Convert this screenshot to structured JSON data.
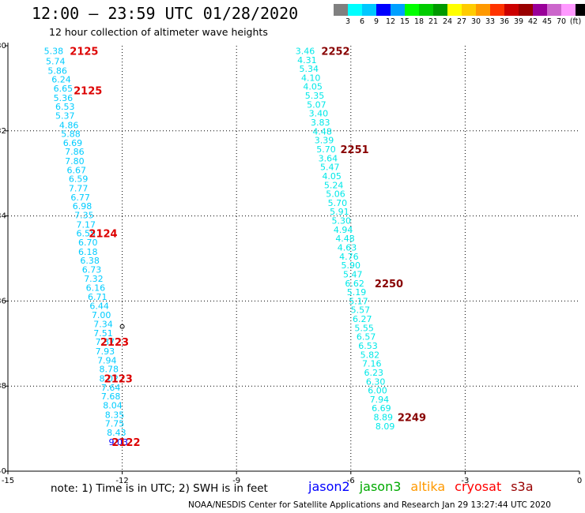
{
  "header": {
    "title": "12:00 – 23:59 UTC 01/28/2020",
    "subtitle": "12 hour collection of altimeter wave heights"
  },
  "colorbar": {
    "colors": [
      "#808080",
      "#00ffff",
      "#00c8ff",
      "#0000ff",
      "#00a0ff",
      "#00ff00",
      "#00cc00",
      "#009900",
      "#ffff00",
      "#ffcc00",
      "#ff9900",
      "#ff3300",
      "#cc0000",
      "#990000",
      "#990099",
      "#cc66cc",
      "#ff99ff",
      "#000000"
    ],
    "labels": [
      "3",
      "6",
      "9",
      "12",
      "15",
      "18",
      "21",
      "24",
      "27",
      "30",
      "33",
      "36",
      "39",
      "42",
      "45",
      "70",
      "(ft)"
    ]
  },
  "note": "note:  1) Time is in UTC;  2) SWH is in feet",
  "legend": [
    {
      "name": "jason2",
      "color": "#0000ff"
    },
    {
      "name": "jason3",
      "color": "#00aa00"
    },
    {
      "name": "altika",
      "color": "#ff9900"
    },
    {
      "name": "cryosat",
      "color": "#ff0000"
    },
    {
      "name": "s3a",
      "color": "#990000"
    }
  ],
  "footer": "NOAA/NESDIS Center for Satellite Applications and Research    Jan 29 13:27:44 UTC 2020",
  "chart_data": {
    "type": "scatter",
    "xlim": [
      -15,
      0
    ],
    "ylim": [
      -40,
      -30
    ],
    "x_ticks": [
      "-15",
      "-12",
      "-9",
      "-6",
      "-3",
      "0"
    ],
    "y_ticks": [
      "-30",
      "-32",
      "-34",
      "-36",
      "-38",
      "-40"
    ],
    "track1": {
      "color_value": "#00ccff",
      "values": [
        "5.38",
        "5.74",
        "5.86",
        "6.24",
        "6.65",
        "5.36",
        "6.53",
        "5.37",
        "4.86",
        "5.88",
        "6.69",
        "7.86",
        "7.80",
        "6.67",
        "6.59",
        "7.77",
        "6.77",
        "6.98",
        "7.35",
        "7.17",
        "6.55",
        "6.70",
        "6.18",
        "6.38",
        "6.73",
        "7.32",
        "6.16",
        "6.71",
        "6.44",
        "7.00",
        "7.34",
        "7.51",
        "7.37",
        "7.93",
        "7.94",
        "8.78",
        "8.02",
        "7.64",
        "7.68",
        "8.04",
        "8.35",
        "7.75",
        "8.43",
        "9.03"
      ],
      "x": [
        -13.8,
        -13.75,
        -13.7,
        -13.6,
        -13.55,
        -13.55,
        -13.5,
        -13.5,
        -13.4,
        -13.35,
        -13.3,
        -13.25,
        -13.25,
        -13.2,
        -13.15,
        -13.15,
        -13.1,
        -13.05,
        -13.0,
        -12.95,
        -12.95,
        -12.9,
        -12.9,
        -12.85,
        -12.8,
        -12.75,
        -12.7,
        -12.65,
        -12.6,
        -12.55,
        -12.5,
        -12.5,
        -12.45,
        -12.45,
        -12.4,
        -12.35,
        -12.35,
        -12.3,
        -12.3,
        -12.25,
        -12.2,
        -12.2,
        -12.15,
        -12.1
      ],
      "y": [
        -30.12,
        -30.36,
        -30.58,
        -30.79,
        -31.0,
        -31.22,
        -31.43,
        -31.64,
        -31.86,
        -32.07,
        -32.28,
        -32.49,
        -32.71,
        -32.92,
        -33.13,
        -33.35,
        -33.56,
        -33.77,
        -33.98,
        -34.2,
        -34.41,
        -34.62,
        -34.84,
        -35.05,
        -35.26,
        -35.47,
        -35.69,
        -35.9,
        -36.11,
        -36.33,
        -36.54,
        -36.75,
        -36.96,
        -37.18,
        -37.39,
        -37.6,
        -37.82,
        -38.03,
        -38.24,
        -38.45,
        -38.67,
        -38.88,
        -39.09,
        -39.31
      ],
      "last_point_color": "#0000ff"
    },
    "track2": {
      "color_value": "#00e8e8",
      "values": [
        "3.46",
        "4.31",
        "5.34",
        "4.10",
        "4.05",
        "5.35",
        "5.07",
        "3.40",
        "3.83",
        "4.48",
        "3.39",
        "5.70",
        "3.64",
        "5.47",
        "4.05",
        "5.24",
        "5.06",
        "5.70",
        "5.91",
        "5.30",
        "4.94",
        "4.48",
        "4.63",
        "4.76",
        "5.90",
        "5.47",
        "6.62",
        "5.19",
        "5.17",
        "5.57",
        "6.27",
        "5.55",
        "6.57",
        "6.53",
        "5.82",
        "7.16",
        "6.23",
        "6.30",
        "6.00",
        "7.94",
        "6.69",
        "8.89",
        "8.09"
      ],
      "x": [
        -7.2,
        -7.15,
        -7.1,
        -7.05,
        -7.0,
        -6.95,
        -6.9,
        -6.85,
        -6.8,
        -6.75,
        -6.7,
        -6.65,
        -6.6,
        -6.55,
        -6.5,
        -6.45,
        -6.4,
        -6.35,
        -6.3,
        -6.25,
        -6.2,
        -6.15,
        -6.1,
        -6.05,
        -6.0,
        -5.95,
        -5.9,
        -5.85,
        -5.8,
        -5.75,
        -5.7,
        -5.65,
        -5.6,
        -5.55,
        -5.5,
        -5.45,
        -5.4,
        -5.35,
        -5.3,
        -5.25,
        -5.2,
        -5.15,
        -5.1
      ],
      "y": [
        -30.12,
        -30.33,
        -30.54,
        -30.75,
        -30.96,
        -31.17,
        -31.38,
        -31.59,
        -31.8,
        -32.01,
        -32.22,
        -32.43,
        -32.64,
        -32.85,
        -33.06,
        -33.27,
        -33.48,
        -33.69,
        -33.9,
        -34.11,
        -34.32,
        -34.53,
        -34.74,
        -34.95,
        -35.16,
        -35.37,
        -35.58,
        -35.79,
        -36.0,
        -36.21,
        -36.42,
        -36.63,
        -36.84,
        -37.05,
        -37.26,
        -37.47,
        -37.68,
        -37.89,
        -38.1,
        -38.31,
        -38.52,
        -38.73,
        -38.94
      ]
    },
    "time_labels": [
      {
        "text": "2125",
        "x": -13.0,
        "y": -30.12,
        "color": "#dd0000"
      },
      {
        "text": "2125",
        "x": -12.9,
        "y": -31.05,
        "color": "#dd0000"
      },
      {
        "text": "2124",
        "x": -12.5,
        "y": -34.41,
        "color": "#dd0000"
      },
      {
        "text": "2123",
        "x": -12.2,
        "y": -36.96,
        "color": "#dd0000"
      },
      {
        "text": "2123",
        "x": -12.1,
        "y": -37.82,
        "color": "#dd0000"
      },
      {
        "text": "2122",
        "x": -11.9,
        "y": -39.31,
        "color": "#dd0000"
      },
      {
        "text": "2252",
        "x": -6.4,
        "y": -30.12,
        "color": "#880000"
      },
      {
        "text": "2251",
        "x": -5.9,
        "y": -32.43,
        "color": "#880000"
      },
      {
        "text": "2250",
        "x": -5.0,
        "y": -35.58,
        "color": "#880000"
      },
      {
        "text": "2249",
        "x": -4.4,
        "y": -38.73,
        "color": "#880000"
      }
    ],
    "marker": {
      "x": -12.0,
      "y": -36.6
    }
  }
}
